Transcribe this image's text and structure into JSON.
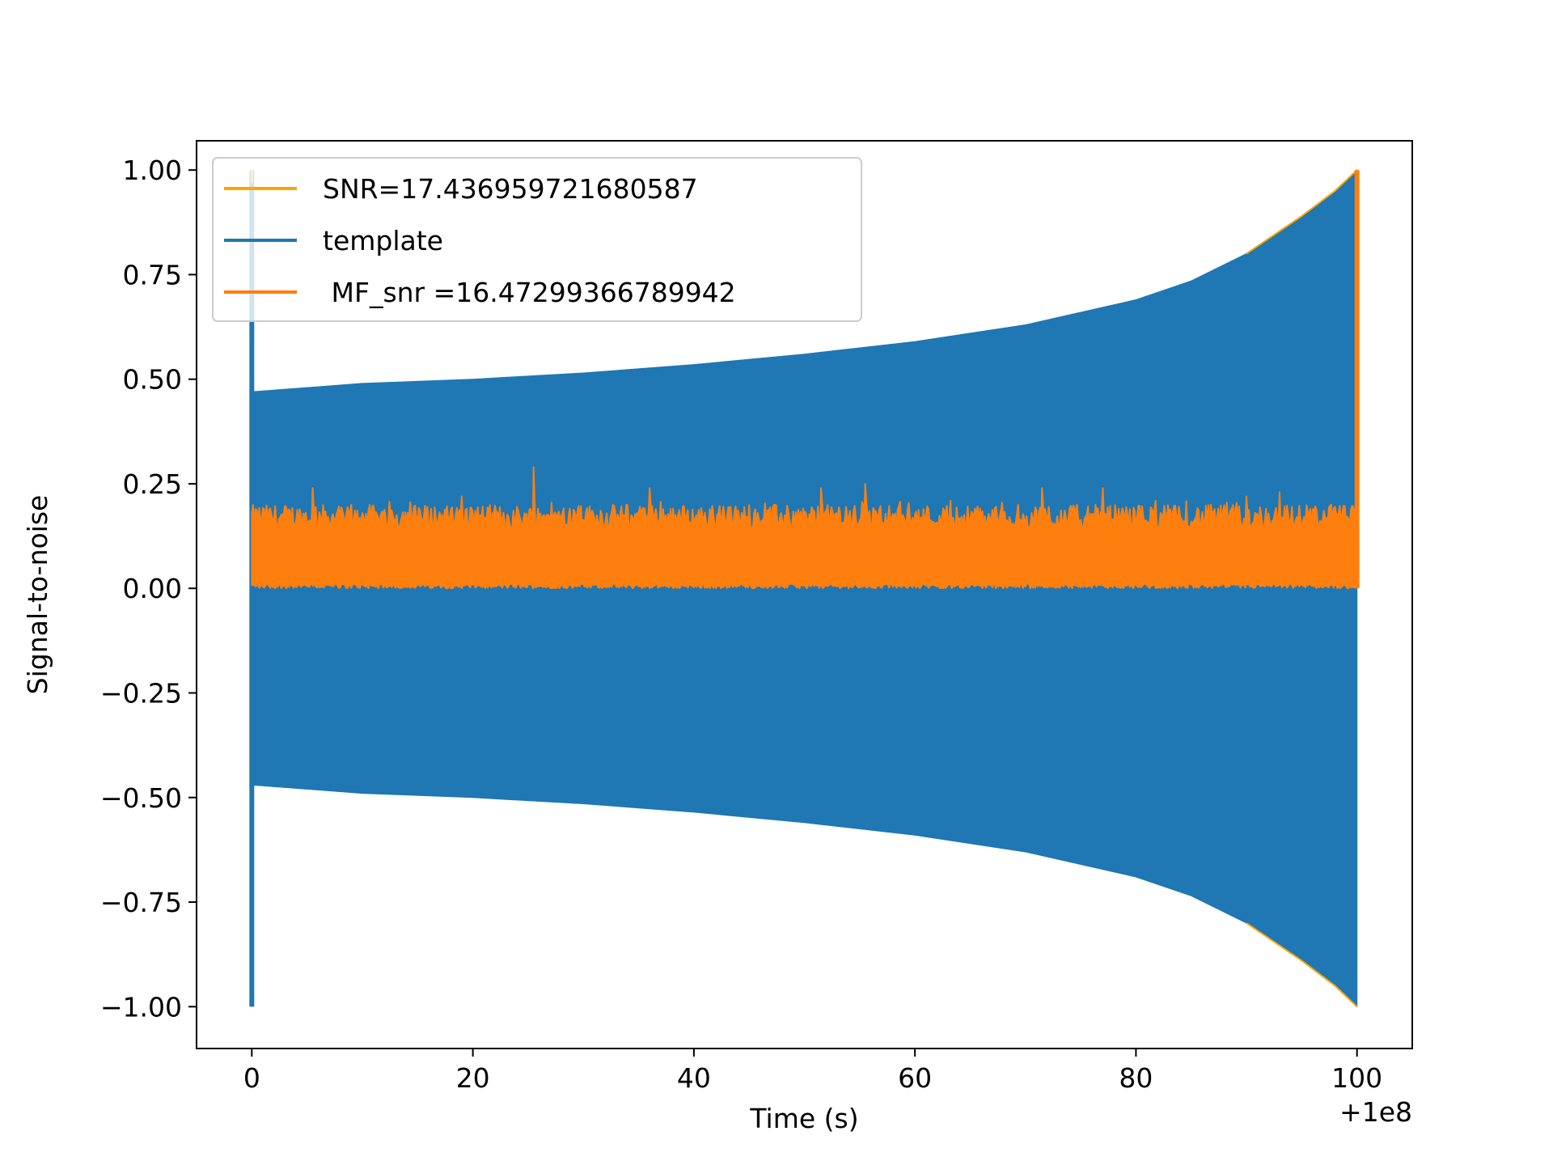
{
  "chart_data": {
    "type": "line",
    "xlabel": "Time (s)",
    "ylabel": "Signal-to-noise",
    "x_offset_label": "+1e8",
    "xlim": [
      -5,
      105
    ],
    "ylim": [
      -1.1,
      1.07
    ],
    "xticks": [
      0,
      20,
      40,
      60,
      80,
      100
    ],
    "xtick_labels": [
      "0",
      "20",
      "40",
      "60",
      "80",
      "100"
    ],
    "yticks": [
      1.0,
      0.75,
      0.5,
      0.25,
      0.0,
      -0.25,
      -0.5,
      -0.75,
      -1.0
    ],
    "ytick_labels": [
      "1.00",
      "0.75",
      "0.50",
      "0.25",
      "0.00",
      "−0.25",
      "−0.50",
      "−0.75",
      "−1.00"
    ],
    "legend_position": "upper-left",
    "series": [
      {
        "name": "SNR=17.436959721680587",
        "color": "#ffa500",
        "kind": "spikes",
        "points": [
          {
            "x": 0,
            "y": 1.0
          },
          {
            "x": 0,
            "y": -1.0
          },
          {
            "x": 100,
            "y": 1.0
          },
          {
            "x": 100,
            "y": -1.0
          }
        ]
      },
      {
        "name": "template",
        "color": "#1f77b4",
        "kind": "envelope",
        "x": [
          0,
          10,
          20,
          30,
          40,
          50,
          60,
          70,
          80,
          85,
          90,
          95,
          98,
          100
        ],
        "upper": [
          0.47,
          0.49,
          0.5,
          0.515,
          0.535,
          0.56,
          0.59,
          0.63,
          0.69,
          0.735,
          0.8,
          0.89,
          0.95,
          1.0
        ],
        "lower": [
          -0.47,
          -0.49,
          -0.5,
          -0.515,
          -0.535,
          -0.56,
          -0.59,
          -0.63,
          -0.69,
          -0.735,
          -0.8,
          -0.89,
          -0.95,
          -1.0
        ],
        "spikes": [
          {
            "x": 0,
            "y_top": 1.0,
            "y_bottom": -1.0
          }
        ]
      },
      {
        "name": " MF_snr =16.47299366789942",
        "color": "#ff7f0e",
        "kind": "noise",
        "x_range": [
          0,
          100
        ],
        "baseline_high": 0.15,
        "baseline_low": 0.0,
        "peaks": [
          {
            "x": 5.5,
            "y": 0.24
          },
          {
            "x": 9,
            "y": 0.2
          },
          {
            "x": 19,
            "y": 0.22
          },
          {
            "x": 25.5,
            "y": 0.29
          },
          {
            "x": 36,
            "y": 0.24
          },
          {
            "x": 51.5,
            "y": 0.24
          },
          {
            "x": 55.5,
            "y": 0.25
          },
          {
            "x": 71.5,
            "y": 0.24
          },
          {
            "x": 77,
            "y": 0.24
          },
          {
            "x": 90,
            "y": 0.22
          },
          {
            "x": 93,
            "y": 0.23
          },
          {
            "x": 100,
            "y": 1.0
          }
        ]
      }
    ]
  }
}
